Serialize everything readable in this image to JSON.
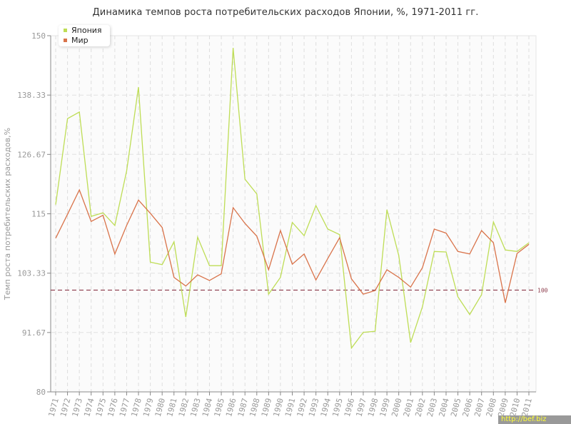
{
  "chart_data": {
    "type": "line",
    "title": "Динамика темпов роста потребительских расходов Японии, %, 1971-2011 гг.",
    "xlabel": "",
    "ylabel": "Темп роста потребительских расходов,%",
    "ylim": [
      80,
      150
    ],
    "yticks": [
      "150",
      "138.33",
      "126.67",
      "115",
      "103.33",
      "91.67",
      "80"
    ],
    "ytick_values": [
      150,
      138.33,
      126.67,
      115,
      103.33,
      91.67,
      80
    ],
    "grid": true,
    "legend_position": "top-left",
    "x": [
      "1971",
      "1972",
      "1973",
      "1974",
      "1975",
      "1976",
      "1977",
      "1978",
      "1979",
      "1980",
      "1981",
      "1982",
      "1983",
      "1984",
      "1985",
      "1986",
      "1987",
      "1988",
      "1989",
      "1990",
      "1991",
      "1992",
      "1993",
      "1994",
      "1995",
      "1996",
      "1997",
      "1998",
      "1999",
      "2000",
      "2001",
      "2002",
      "2003",
      "2004",
      "2005",
      "2006",
      "2007",
      "2008",
      "2009",
      "2010",
      "2011"
    ],
    "series": [
      {
        "name": "Япония",
        "color": "#bedd55",
        "values": [
          116.8,
          133.7,
          135.0,
          114.5,
          115.2,
          112.7,
          123.4,
          139.9,
          105.5,
          105.0,
          109.5,
          94.7,
          110.4,
          104.8,
          104.8,
          147.6,
          121.8,
          118.9,
          99.2,
          102.5,
          113.3,
          110.7,
          116.6,
          112.0,
          110.9,
          88.6,
          91.7,
          91.9,
          115.8,
          106.8,
          89.7,
          96.7,
          107.6,
          107.5,
          98.7,
          95.2,
          99.1,
          113.4,
          107.9,
          107.6,
          109.3
        ]
      },
      {
        "name": "Мир",
        "color": "#d9734a",
        "values": [
          110.2,
          114.9,
          119.7,
          113.5,
          114.7,
          107.1,
          112.7,
          117.7,
          115.1,
          112.3,
          102.5,
          100.8,
          103.0,
          101.9,
          103.2,
          116.2,
          113.1,
          110.6,
          104.0,
          111.7,
          105.1,
          107.1,
          102.0,
          106.2,
          110.3,
          102.2,
          99.2,
          99.9,
          104.0,
          102.5,
          100.6,
          104.4,
          112.0,
          111.2,
          107.6,
          107.1,
          111.7,
          109.3,
          97.5,
          107.2,
          109.0
        ]
      }
    ],
    "reference_line": {
      "value": 100,
      "label": "100",
      "color": "#8b3a4a"
    },
    "annotations": [
      "100"
    ]
  },
  "legend": {
    "items": [
      {
        "label": "Япония",
        "color": "#bedd55"
      },
      {
        "label": "Мир",
        "color": "#d9734a"
      }
    ]
  },
  "watermark": "http://bef.biz"
}
